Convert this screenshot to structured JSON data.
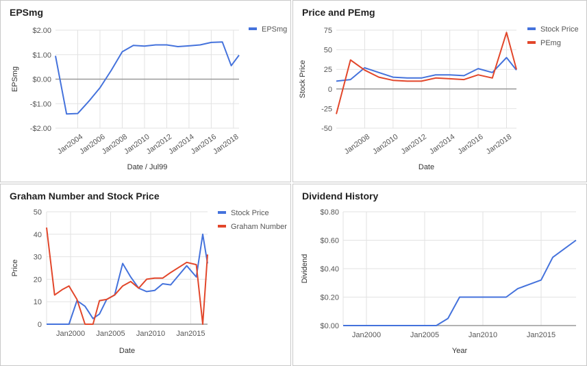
{
  "colors": {
    "blue": "#4472dc",
    "red": "#e2462a",
    "grid": "#e2e2e2",
    "zero": "#999999",
    "text": "#555555"
  },
  "chart_data": [
    {
      "type": "line",
      "title": "EPSmg",
      "xlabel": "Date / Jul99",
      "ylabel": "EPSmg",
      "ylim": [
        -2,
        2
      ],
      "yticks": [
        2,
        1,
        0,
        -1,
        -2
      ],
      "ytick_labels": [
        "$2.00",
        "$1.00",
        "$0.00",
        "-$1.00",
        "-$2.00"
      ],
      "xticks": [
        2004,
        2006,
        2008,
        2010,
        2012,
        2014,
        2016,
        2018
      ],
      "xtick_labels": [
        "Jan2004",
        "Jan2006",
        "Jan2008",
        "Jan2010",
        "Jan2012",
        "Jan2014",
        "Jan2016",
        "Jan2018"
      ],
      "grid": true,
      "legend": "top-right",
      "series": [
        {
          "name": "EPSmg",
          "color": "blue",
          "x": [
            2002.0,
            2003.0,
            2004.0,
            2005.0,
            2006.0,
            2007.0,
            2008.0,
            2009.0,
            2010.0,
            2011.0,
            2012.0,
            2013.0,
            2014.0,
            2015.0,
            2016.0,
            2017.0,
            2017.8,
            2018.5
          ],
          "values": [
            0.95,
            -1.42,
            -1.4,
            -0.9,
            -0.35,
            0.35,
            1.12,
            1.38,
            1.35,
            1.4,
            1.4,
            1.33,
            1.36,
            1.4,
            1.5,
            1.52,
            0.55,
            0.98
          ]
        }
      ]
    },
    {
      "type": "line",
      "title": "Price and PEmg",
      "xlabel": "Date",
      "ylabel": "Stock Price",
      "ylim": [
        -50,
        75
      ],
      "yticks": [
        75,
        50,
        25,
        0,
        -25,
        -50
      ],
      "ytick_labels": [
        "75",
        "50",
        "25",
        "0",
        "-25",
        "-50"
      ],
      "xticks": [
        2008,
        2010,
        2012,
        2014,
        2016,
        2018
      ],
      "xtick_labels": [
        "Jan2008",
        "Jan2010",
        "Jan2012",
        "Jan2014",
        "Jan2016",
        "Jan2018"
      ],
      "grid": true,
      "legend": "top-right",
      "series": [
        {
          "name": "Stock Price",
          "color": "blue",
          "x": [
            2006.0,
            2007.0,
            2008.0,
            2009.0,
            2010.0,
            2011.0,
            2012.0,
            2013.0,
            2014.0,
            2015.0,
            2016.0,
            2017.0,
            2018.0,
            2018.7
          ],
          "values": [
            10,
            12,
            27,
            21,
            15,
            14,
            14,
            18,
            18,
            17,
            26,
            21,
            40,
            24
          ]
        },
        {
          "name": "PEmg",
          "color": "red",
          "x": [
            2006.0,
            2007.0,
            2008.0,
            2009.0,
            2010.0,
            2011.0,
            2012.0,
            2013.0,
            2014.0,
            2015.0,
            2016.0,
            2017.0,
            2018.0,
            2018.7
          ],
          "values": [
            -32,
            37,
            24,
            15,
            11,
            10,
            10,
            14,
            13,
            12,
            18,
            14,
            72,
            25
          ]
        }
      ]
    },
    {
      "type": "line",
      "title": "Graham Number and Stock Price",
      "xlabel": "Date",
      "ylabel": "Price",
      "ylim": [
        0,
        50
      ],
      "yticks": [
        50,
        40,
        30,
        20,
        10,
        0
      ],
      "ytick_labels": [
        "50",
        "40",
        "30",
        "20",
        "10",
        "0"
      ],
      "xticks": [
        2000,
        2005,
        2010,
        2015
      ],
      "xtick_labels": [
        "Jan2000",
        "Jan2005",
        "Jan2010",
        "Jan2015"
      ],
      "grid": true,
      "legend": "top-right",
      "series": [
        {
          "name": "Stock Price",
          "color": "blue",
          "x": [
            1997.0,
            1998.0,
            1999.0,
            1999.8,
            2000.8,
            2001.8,
            2002.8,
            2003.6,
            2004.5,
            2005.5,
            2006.5,
            2007.5,
            2008.5,
            2009.5,
            2010.5,
            2011.5,
            2012.5,
            2014.5,
            2015.7,
            2016.5,
            2017.1
          ],
          "values": [
            0,
            0,
            0,
            0,
            10.5,
            8,
            2.5,
            4.5,
            11,
            13,
            27,
            21,
            16,
            14.5,
            15,
            18,
            17.5,
            26,
            21,
            40,
            27
          ]
        },
        {
          "name": "Graham Number",
          "color": "red",
          "x": [
            1997.0,
            1998.0,
            1999.0,
            1999.8,
            2000.8,
            2001.8,
            2002.8,
            2003.6,
            2004.5,
            2005.5,
            2006.5,
            2007.5,
            2008.5,
            2009.5,
            2010.5,
            2011.5,
            2012.5,
            2014.5,
            2015.7,
            2016.5,
            2017.1
          ],
          "values": [
            43,
            13,
            15.5,
            17,
            11,
            0,
            0,
            10.5,
            11,
            13,
            17,
            19,
            16,
            20,
            20.5,
            20.5,
            23,
            27.5,
            26.5,
            0,
            31
          ]
        }
      ]
    },
    {
      "type": "line",
      "title": "Dividend History",
      "xlabel": "Year",
      "ylabel": "Dividend",
      "ylim": [
        0,
        0.8
      ],
      "yticks": [
        0.8,
        0.6,
        0.4,
        0.2,
        0.0
      ],
      "ytick_labels": [
        "$0.80",
        "$0.60",
        "$0.40",
        "$0.20",
        "$0.00"
      ],
      "xticks": [
        2000,
        2005,
        2010,
        2015
      ],
      "xtick_labels": [
        "Jan2000",
        "Jan2005",
        "Jan2010",
        "Jan2015"
      ],
      "grid": true,
      "legend": "none",
      "series": [
        {
          "name": "",
          "color": "blue",
          "x": [
            1998.0,
            2000.0,
            2002.0,
            2004.0,
            2006.0,
            2007.0,
            2008.0,
            2009.0,
            2010.0,
            2011.0,
            2012.0,
            2013.0,
            2014.0,
            2015.0,
            2016.0,
            2017.0,
            2018.0
          ],
          "values": [
            0,
            0,
            0,
            0,
            0,
            0.05,
            0.2,
            0.2,
            0.2,
            0.2,
            0.2,
            0.26,
            0.29,
            0.32,
            0.48,
            0.54,
            0.6
          ]
        }
      ]
    }
  ]
}
